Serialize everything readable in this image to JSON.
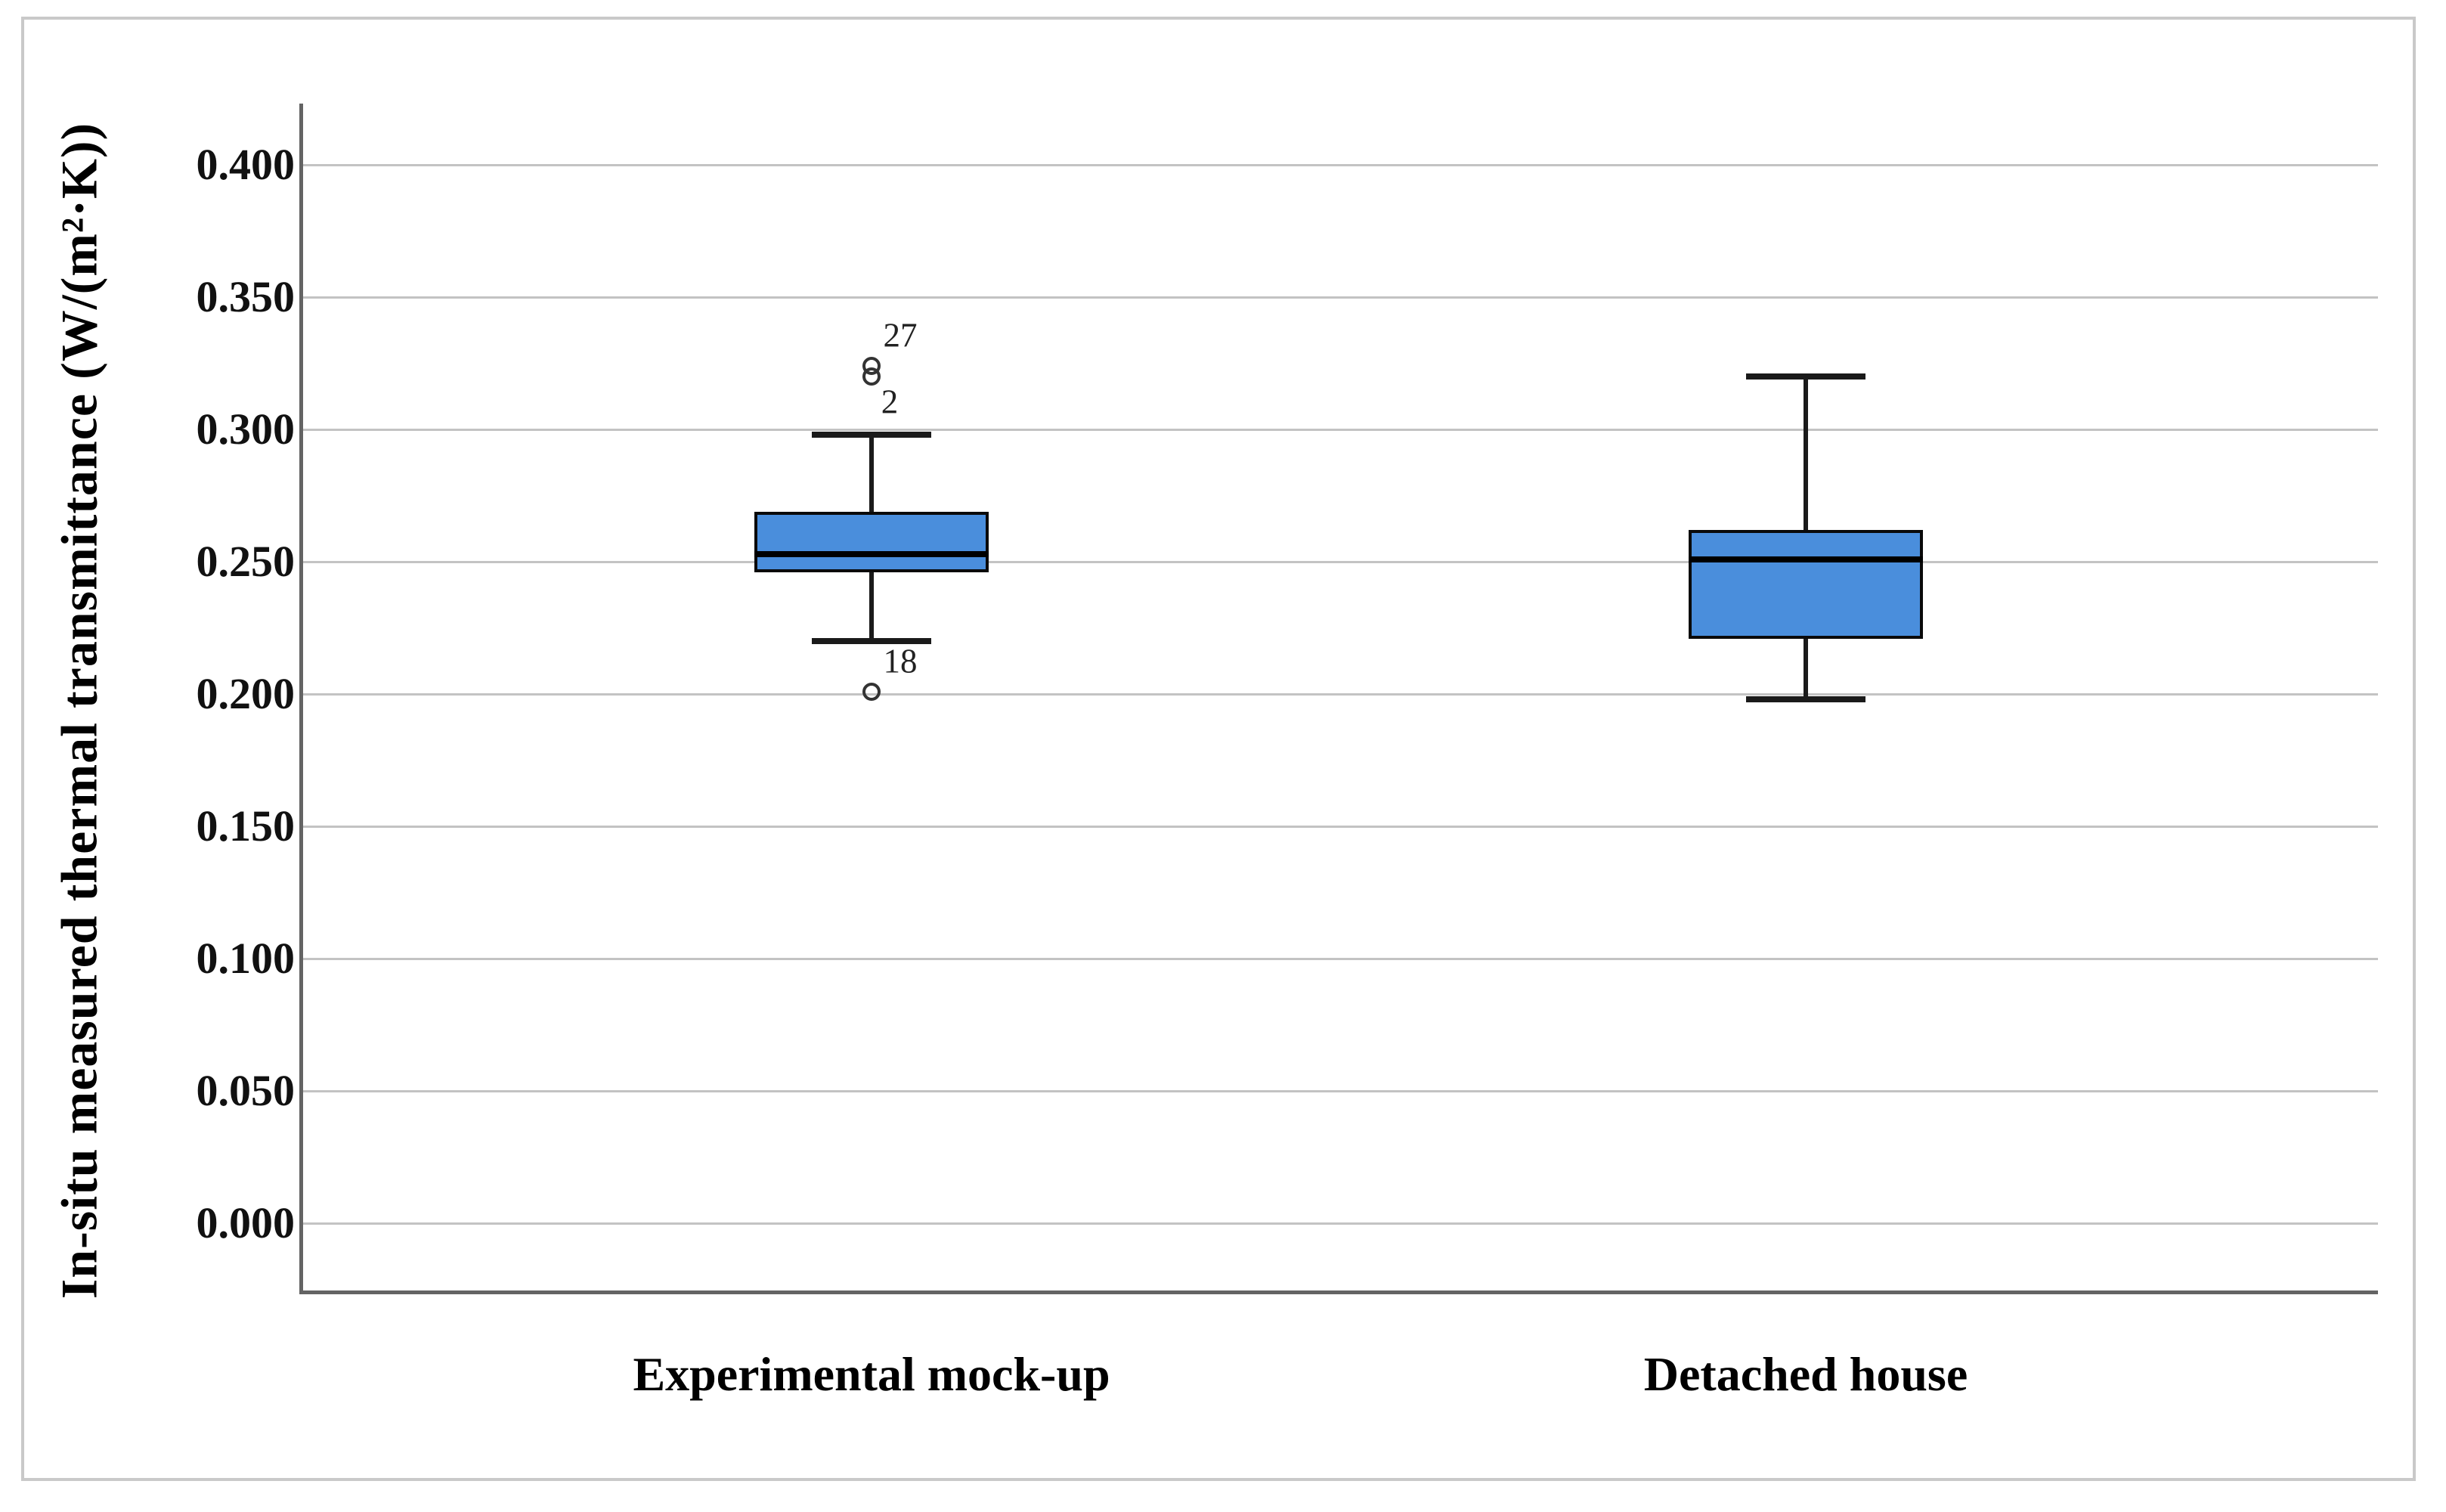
{
  "figure": {
    "type_note": "SPSS-style box plot figure with outer gray frame",
    "background": "#ffffff"
  },
  "chart_data": {
    "type": "boxplot",
    "title": "",
    "xlabel": "",
    "ylabel": "In-situ measured thermal transmittance (W/(m²·K))",
    "ylim": [
      -0.027,
      0.423
    ],
    "grid": "horizontal",
    "legend": "none",
    "yticks": [
      {
        "label": "0.400",
        "value": 0.4
      },
      {
        "label": "0.350",
        "value": 0.35
      },
      {
        "label": "0.300",
        "value": 0.3
      },
      {
        "label": "0.250",
        "value": 0.25
      },
      {
        "label": "0.200",
        "value": 0.2
      },
      {
        "label": "0.150",
        "value": 0.15
      },
      {
        "label": "0.100",
        "value": 0.1
      },
      {
        "label": "0.050",
        "value": 0.05
      },
      {
        "label": "0.000",
        "value": 0.0
      }
    ],
    "categories": [
      "Experimental mock-up",
      "Detached house"
    ],
    "series": [
      {
        "category": "Experimental mock-up",
        "whisker_low": 0.22,
        "q1": 0.246,
        "median": 0.253,
        "q3": 0.269,
        "whisker_high": 0.298,
        "outliers": [
          {
            "value": 0.324,
            "label": "27",
            "label_placement": "above-right"
          },
          {
            "value": 0.32,
            "label": "2",
            "label_placement": "below-right"
          },
          {
            "value": 0.201,
            "label": "18",
            "label_placement": "above-right"
          }
        ]
      },
      {
        "category": "Detached house",
        "whisker_low": 0.198,
        "q1": 0.221,
        "median": 0.251,
        "q3": 0.262,
        "whisker_high": 0.32,
        "outliers": []
      }
    ],
    "colors": {
      "box_fill": "#4a8edc",
      "box_border": "#0a0a0a",
      "median": "#000000",
      "whisker": "#1a1a1a",
      "gridline": "#c3c3c3",
      "axis_line": "#646464",
      "outer_border": "#c9c9c9",
      "outlier_ring": "#333333",
      "text": "#000000"
    }
  }
}
